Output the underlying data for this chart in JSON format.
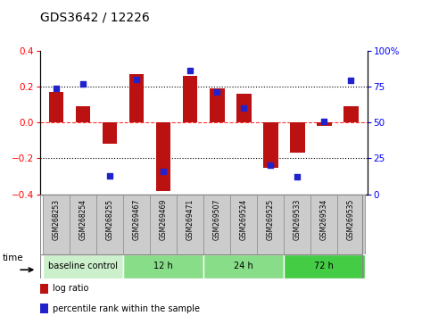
{
  "title": "GDS3642 / 12226",
  "samples": [
    "GSM268253",
    "GSM268254",
    "GSM268255",
    "GSM269467",
    "GSM269469",
    "GSM269471",
    "GSM269507",
    "GSM269524",
    "GSM269525",
    "GSM269533",
    "GSM269534",
    "GSM269535"
  ],
  "log_ratio": [
    0.17,
    0.09,
    -0.12,
    0.27,
    -0.38,
    0.26,
    0.19,
    0.16,
    -0.25,
    -0.17,
    -0.02,
    0.09
  ],
  "percentile": [
    74,
    77,
    13,
    80,
    16,
    86,
    71,
    60,
    20,
    12,
    51,
    79
  ],
  "bar_color": "#bb1111",
  "dot_color": "#2222cc",
  "ylim_left": [
    -0.4,
    0.4
  ],
  "ylim_right": [
    0,
    100
  ],
  "yticks_left": [
    -0.4,
    -0.2,
    0.0,
    0.2,
    0.4
  ],
  "yticks_right": [
    0,
    25,
    50,
    75,
    100
  ],
  "ytick_labels_right": [
    "0",
    "25",
    "50",
    "75",
    "100%"
  ],
  "hlines_dotted": [
    0.2,
    -0.2
  ],
  "group_defs": [
    {
      "label": "baseline control",
      "start": 0,
      "end": 2,
      "color": "#ccf0cc"
    },
    {
      "label": "12 h",
      "start": 3,
      "end": 5,
      "color": "#88dd88"
    },
    {
      "label": "24 h",
      "start": 6,
      "end": 8,
      "color": "#88dd88"
    },
    {
      "label": "72 h",
      "start": 9,
      "end": 11,
      "color": "#44cc44"
    }
  ],
  "legend_items": [
    {
      "label": "log ratio",
      "color": "#bb1111"
    },
    {
      "label": "percentile rank within the sample",
      "color": "#2222cc"
    }
  ],
  "bar_width": 0.55,
  "bg_color": "#ffffff",
  "label_box_color": "#cccccc",
  "label_box_edge": "#999999"
}
